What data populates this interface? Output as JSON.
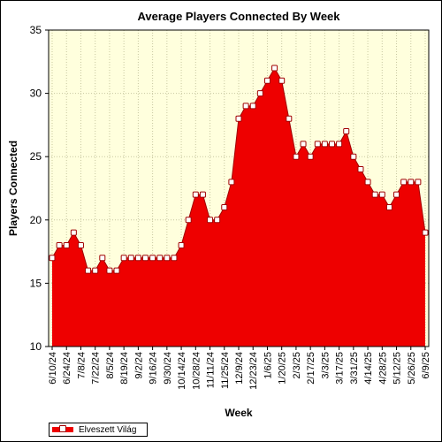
{
  "chart_data": {
    "type": "area",
    "title": "Average Players Connected By Week",
    "xlabel": "Week",
    "ylabel": "Players Connected",
    "ylim": [
      10,
      35
    ],
    "yticks": [
      10,
      15,
      20,
      25,
      30,
      35
    ],
    "grid": true,
    "legend_position": "bottom-left",
    "x_tick_labels": [
      "6/10/24",
      "6/24/24",
      "7/8/24",
      "7/22/24",
      "8/5/24",
      "8/19/24",
      "9/2/24",
      "9/16/24",
      "9/30/24",
      "10/14/24",
      "10/28/24",
      "11/11/24",
      "11/25/24",
      "12/9/24",
      "12/23/24",
      "1/6/25",
      "1/20/25",
      "2/3/25",
      "2/17/25",
      "3/3/25",
      "3/17/25",
      "3/31/25",
      "4/14/25",
      "4/28/25",
      "5/12/25",
      "5/26/25",
      "6/9/25"
    ],
    "series": [
      {
        "name": "Elveszett Világ",
        "values": [
          17,
          18,
          18,
          19,
          18,
          16,
          16,
          17,
          16,
          16,
          17,
          17,
          17,
          17,
          17,
          17,
          17,
          17,
          18,
          20,
          22,
          22,
          20,
          20,
          21,
          23,
          28,
          29,
          29,
          30,
          31,
          32,
          31,
          28,
          25,
          26,
          25,
          26,
          26,
          26,
          26,
          27,
          25,
          24,
          23,
          22,
          22,
          21,
          22,
          23,
          23,
          23,
          19
        ]
      }
    ],
    "colors": {
      "fill": "#ee0000",
      "line": "#a00000",
      "plot_background": "#ffffdd",
      "grid": "#c8c8a0",
      "marker_fill": "#ffffff"
    }
  }
}
